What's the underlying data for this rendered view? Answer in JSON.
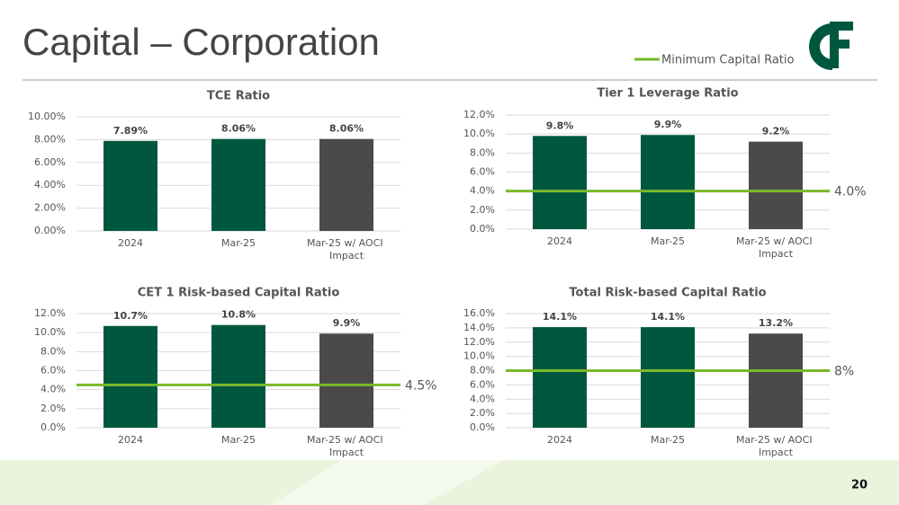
{
  "title": "Capital – Corporation",
  "page_number": "20",
  "legend": {
    "name": "Minimum Capital Ratio",
    "color": "#7ab929"
  },
  "chart_data": [
    {
      "type": "bar",
      "title": "TCE Ratio",
      "categories": [
        "2024",
        "Mar-25",
        "Mar-25 w/ AOCI Impact"
      ],
      "values": [
        7.89,
        8.06,
        8.06
      ],
      "value_labels": [
        "7.89%",
        "8.06%",
        "8.06%"
      ],
      "colors": [
        "#00573f",
        "#00573f",
        "#4a4a4a"
      ],
      "ylim": [
        0,
        10
      ],
      "yticks": [
        {
          "value": 0,
          "label": "0.00%"
        },
        {
          "value": 2,
          "label": "2.00%"
        },
        {
          "value": 4,
          "label": "4.00%"
        },
        {
          "value": 6,
          "label": "6.00%"
        },
        {
          "value": 8,
          "label": "8.00%"
        },
        {
          "value": 10,
          "label": "10.00%"
        }
      ],
      "grid": true
    },
    {
      "type": "bar",
      "title": "Tier 1 Leverage Ratio",
      "categories": [
        "2024",
        "Mar-25",
        "Mar-25 w/ AOCI Impact"
      ],
      "values": [
        9.8,
        9.9,
        9.2
      ],
      "value_labels": [
        "9.8%",
        "9.9%",
        "9.2%"
      ],
      "colors": [
        "#00573f",
        "#00573f",
        "#4a4a4a"
      ],
      "ylim": [
        0,
        12
      ],
      "yticks": [
        {
          "value": 0,
          "label": "0.0%"
        },
        {
          "value": 2,
          "label": "2.0%"
        },
        {
          "value": 4,
          "label": "4.0%"
        },
        {
          "value": 6,
          "label": "6.0%"
        },
        {
          "value": 8,
          "label": "8.0%"
        },
        {
          "value": 10,
          "label": "10.0%"
        },
        {
          "value": 12,
          "label": "12.0%"
        }
      ],
      "grid": true,
      "min_ratio": 4,
      "min_ratio_label": "4.0%"
    },
    {
      "type": "bar",
      "title": "CET 1 Risk-based Capital Ratio",
      "categories": [
        "2024",
        "Mar-25",
        "Mar-25 w/ AOCI Impact"
      ],
      "values": [
        10.7,
        10.8,
        9.9
      ],
      "value_labels": [
        "10.7%",
        "10.8%",
        "9.9%"
      ],
      "colors": [
        "#00573f",
        "#00573f",
        "#4a4a4a"
      ],
      "ylim": [
        0,
        12
      ],
      "yticks": [
        {
          "value": 0,
          "label": "0.0%"
        },
        {
          "value": 2,
          "label": "2.0%"
        },
        {
          "value": 4,
          "label": "4.0%"
        },
        {
          "value": 6,
          "label": "6.0%"
        },
        {
          "value": 8,
          "label": "8.0%"
        },
        {
          "value": 10,
          "label": "10.0%"
        },
        {
          "value": 12,
          "label": "12.0%"
        }
      ],
      "grid": true,
      "min_ratio": 4.5,
      "min_ratio_label": "4.5%"
    },
    {
      "type": "bar",
      "title": "Total Risk-based Capital Ratio",
      "categories": [
        "2024",
        "Mar-25",
        "Mar-25 w/ AOCI Impact"
      ],
      "values": [
        14.1,
        14.1,
        13.2
      ],
      "value_labels": [
        "14.1%",
        "14.1%",
        "13.2%"
      ],
      "colors": [
        "#00573f",
        "#00573f",
        "#4a4a4a"
      ],
      "ylim": [
        0,
        16
      ],
      "yticks": [
        {
          "value": 0,
          "label": "0.0%"
        },
        {
          "value": 2,
          "label": "2.0%"
        },
        {
          "value": 4,
          "label": "4.0%"
        },
        {
          "value": 6,
          "label": "6.0%"
        },
        {
          "value": 8,
          "label": "8.0%"
        },
        {
          "value": 10,
          "label": "10.0%"
        },
        {
          "value": 12,
          "label": "12.0%"
        },
        {
          "value": 14,
          "label": "14.0%"
        },
        {
          "value": 16,
          "label": "16.0%"
        }
      ],
      "grid": true,
      "min_ratio": 8,
      "min_ratio_label": "8%"
    }
  ]
}
